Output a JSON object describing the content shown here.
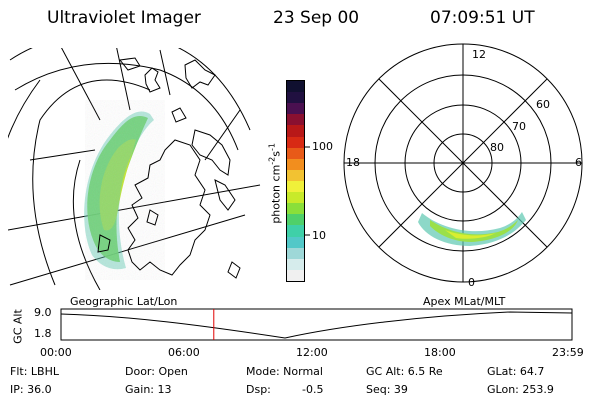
{
  "header": {
    "instrument": "Ultraviolet Imager",
    "date": "23 Sep 00",
    "time": "07:09:51 UT"
  },
  "colorbar": {
    "label": "photon cm",
    "label_sup1": "-2",
    "label_mid": "s",
    "label_sup2": "-1",
    "ticks": [
      "100",
      "10"
    ],
    "colors": [
      "#f0f0f0",
      "#d6ecec",
      "#9ed8d8",
      "#52c8c8",
      "#3fd0a8",
      "#4fd06a",
      "#8adf3a",
      "#c8ea2a",
      "#f0f03a",
      "#f2c232",
      "#f28e1e",
      "#e85a18",
      "#d82a14",
      "#b81818",
      "#8a1030",
      "#4a1050",
      "#201040",
      "#101030"
    ]
  },
  "polar": {
    "clock_labels": {
      "top": "12",
      "left": "18",
      "right": "6",
      "bottom": "0"
    },
    "lat_labels": [
      "60",
      "70",
      "80"
    ]
  },
  "timeline": {
    "left_title": "Geographic Lat/Lon",
    "right_title": "Apex MLat/MLT",
    "ylabel": "GC Alt",
    "y_top": "9.0",
    "y_bottom": "1.8",
    "x_ticks": [
      "00:00",
      "06:00",
      "12:00",
      "18:00",
      "23:59"
    ],
    "marker_time": "07:09:51",
    "marker_fraction": 0.299
  },
  "info": {
    "flt": "Flt: LBHL",
    "ip": "IP: 36.0",
    "door": "Door: Open",
    "gain": "Gain: 13",
    "mode": "Mode: Normal",
    "dsp": "Dsp:",
    "dsp_val": "-0.5",
    "gc_alt": "GC Alt: 6.5 Re",
    "seq": "Seq: 39",
    "glat": "GLat:  64.7",
    "glon": "GLon: 253.9"
  }
}
